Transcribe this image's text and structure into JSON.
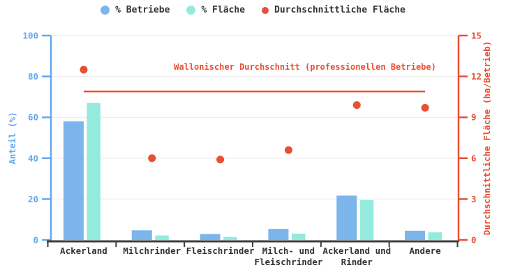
{
  "chart_data": {
    "type": "bar",
    "title": "",
    "categories": [
      "Ackerland",
      "Milchrinder",
      "Fleischrinder",
      "Milch- und\nFleischrinder",
      "Ackerland und\nRinder",
      "Andere"
    ],
    "series": [
      {
        "name": "% Betriebe",
        "kind": "bar",
        "axis": "left",
        "color": "#7CB5EC",
        "values": [
          58,
          4.7,
          2.9,
          5.4,
          21.7,
          4.5
        ]
      },
      {
        "name": "% Fläche",
        "kind": "bar",
        "axis": "left",
        "color": "#94EADC",
        "values": [
          67,
          2.2,
          1.4,
          3.1,
          19.5,
          3.7
        ]
      },
      {
        "name": "Durchschnittliche Fläche",
        "kind": "scatter",
        "axis": "right",
        "color": "#E94F33",
        "values": [
          12.5,
          6,
          5.9,
          6.6,
          9.9,
          9.7
        ]
      }
    ],
    "reference_line": {
      "value": 10.9,
      "axis": "right",
      "label": "Wallonischer Durchschnitt (professionellen Betriebe)",
      "color": "#E94F33"
    },
    "left_axis": {
      "title": "Anteil (%)",
      "min": 0,
      "max": 100,
      "ticks": [
        0,
        20,
        40,
        60,
        80,
        100
      ],
      "color": "#63A8F0"
    },
    "right_axis": {
      "title": "Durchschnittliche Fläche (ha/Betrieb)",
      "min": 0,
      "max": 15,
      "ticks": [
        0,
        3,
        6,
        9,
        12,
        15
      ],
      "color": "#E94F33"
    },
    "x_axis": {
      "color": "#3D3D3D",
      "label_color": "#333333"
    },
    "grid": {
      "show": true,
      "color": "#E8E8E8"
    },
    "legend_position": "top",
    "background": "#FFFFFF"
  }
}
